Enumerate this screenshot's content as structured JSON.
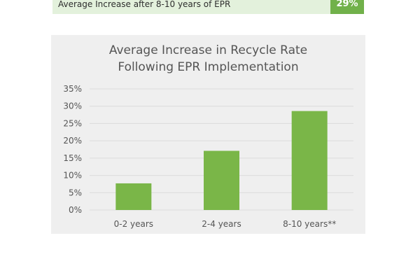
{
  "summary_row": {
    "label": "Average Increase after 8-10 years of EPR",
    "value": "29%"
  },
  "colors": {
    "bar": "#7ab648",
    "summary_value_bg": "#71b14a",
    "summary_row_bg": "#e3f1dc",
    "panel_bg": "#efefef",
    "grid": "#dcdcdc",
    "text": "#555555"
  },
  "chart_data": {
    "type": "bar",
    "title": "Average Increase in Recycle Rate Following EPR Implementation",
    "title_lines": [
      "Average Increase in Recycle Rate",
      "Following EPR Implementation"
    ],
    "categories": [
      "0-2 years",
      "2-4 years",
      "8-10 years**"
    ],
    "values": [
      7.7,
      17.1,
      28.6
    ],
    "y_ticks": [
      "35%",
      "30%",
      "25%",
      "20%",
      "15%",
      "10%",
      "5%",
      "0%"
    ],
    "ylim": [
      0,
      35
    ],
    "xlabel": "",
    "ylabel": "",
    "grid": true,
    "legend": "none"
  }
}
